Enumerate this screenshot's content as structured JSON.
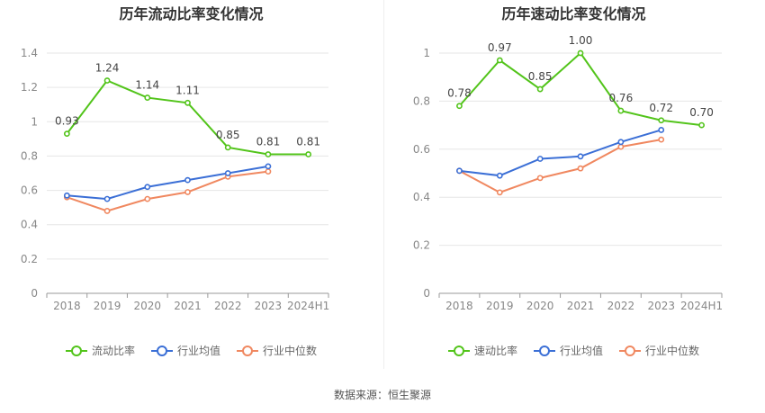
{
  "source_label": "数据来源：恒生聚源",
  "chart_data": [
    {
      "type": "line",
      "title": "历年流动比率变化情况",
      "categories": [
        "2018",
        "2019",
        "2020",
        "2021",
        "2022",
        "2023",
        "2024H1"
      ],
      "ylim": [
        0,
        1.4
      ],
      "yticks": [
        0,
        0.2,
        0.4,
        0.6,
        0.8,
        1,
        1.2,
        1.4
      ],
      "ytick_labels": [
        "0",
        "0.2",
        "0.4",
        "0.6",
        "0.8",
        "1",
        "1.2",
        "1.4"
      ],
      "grid": true,
      "legend_position": "bottom-center",
      "series": [
        {
          "name": "流动比率",
          "color": "#52c41a",
          "values": [
            0.93,
            1.24,
            1.14,
            1.11,
            0.85,
            0.81,
            0.81
          ],
          "data_labels": [
            "0.93",
            "1.24",
            "1.14",
            "1.11",
            "0.85",
            "0.81",
            "0.81"
          ]
        },
        {
          "name": "行业均值",
          "color": "#3b6fd6",
          "values": [
            0.57,
            0.55,
            0.62,
            0.66,
            0.7,
            0.74,
            null
          ]
        },
        {
          "name": "行业中位数",
          "color": "#f08860",
          "values": [
            0.56,
            0.48,
            0.55,
            0.59,
            0.68,
            0.71,
            null
          ]
        }
      ]
    },
    {
      "type": "line",
      "title": "历年速动比率变化情况",
      "categories": [
        "2018",
        "2019",
        "2020",
        "2021",
        "2022",
        "2023",
        "2024H1"
      ],
      "ylim": [
        0,
        1
      ],
      "yticks": [
        0,
        0.2,
        0.4,
        0.6,
        0.8,
        1
      ],
      "ytick_labels": [
        "0",
        "0.2",
        "0.4",
        "0.6",
        "0.8",
        "1"
      ],
      "grid": true,
      "legend_position": "bottom-center",
      "series": [
        {
          "name": "速动比率",
          "color": "#52c41a",
          "values": [
            0.78,
            0.97,
            0.85,
            1.0,
            0.76,
            0.72,
            0.7
          ],
          "data_labels": [
            "0.78",
            "0.97",
            "0.85",
            "1.00",
            "0.76",
            "0.72",
            "0.70"
          ]
        },
        {
          "name": "行业均值",
          "color": "#3b6fd6",
          "values": [
            0.51,
            0.49,
            0.56,
            0.57,
            0.63,
            0.68,
            null
          ]
        },
        {
          "name": "行业中位数",
          "color": "#f08860",
          "values": [
            0.51,
            0.42,
            0.48,
            0.52,
            0.61,
            0.64,
            null
          ]
        }
      ]
    }
  ]
}
